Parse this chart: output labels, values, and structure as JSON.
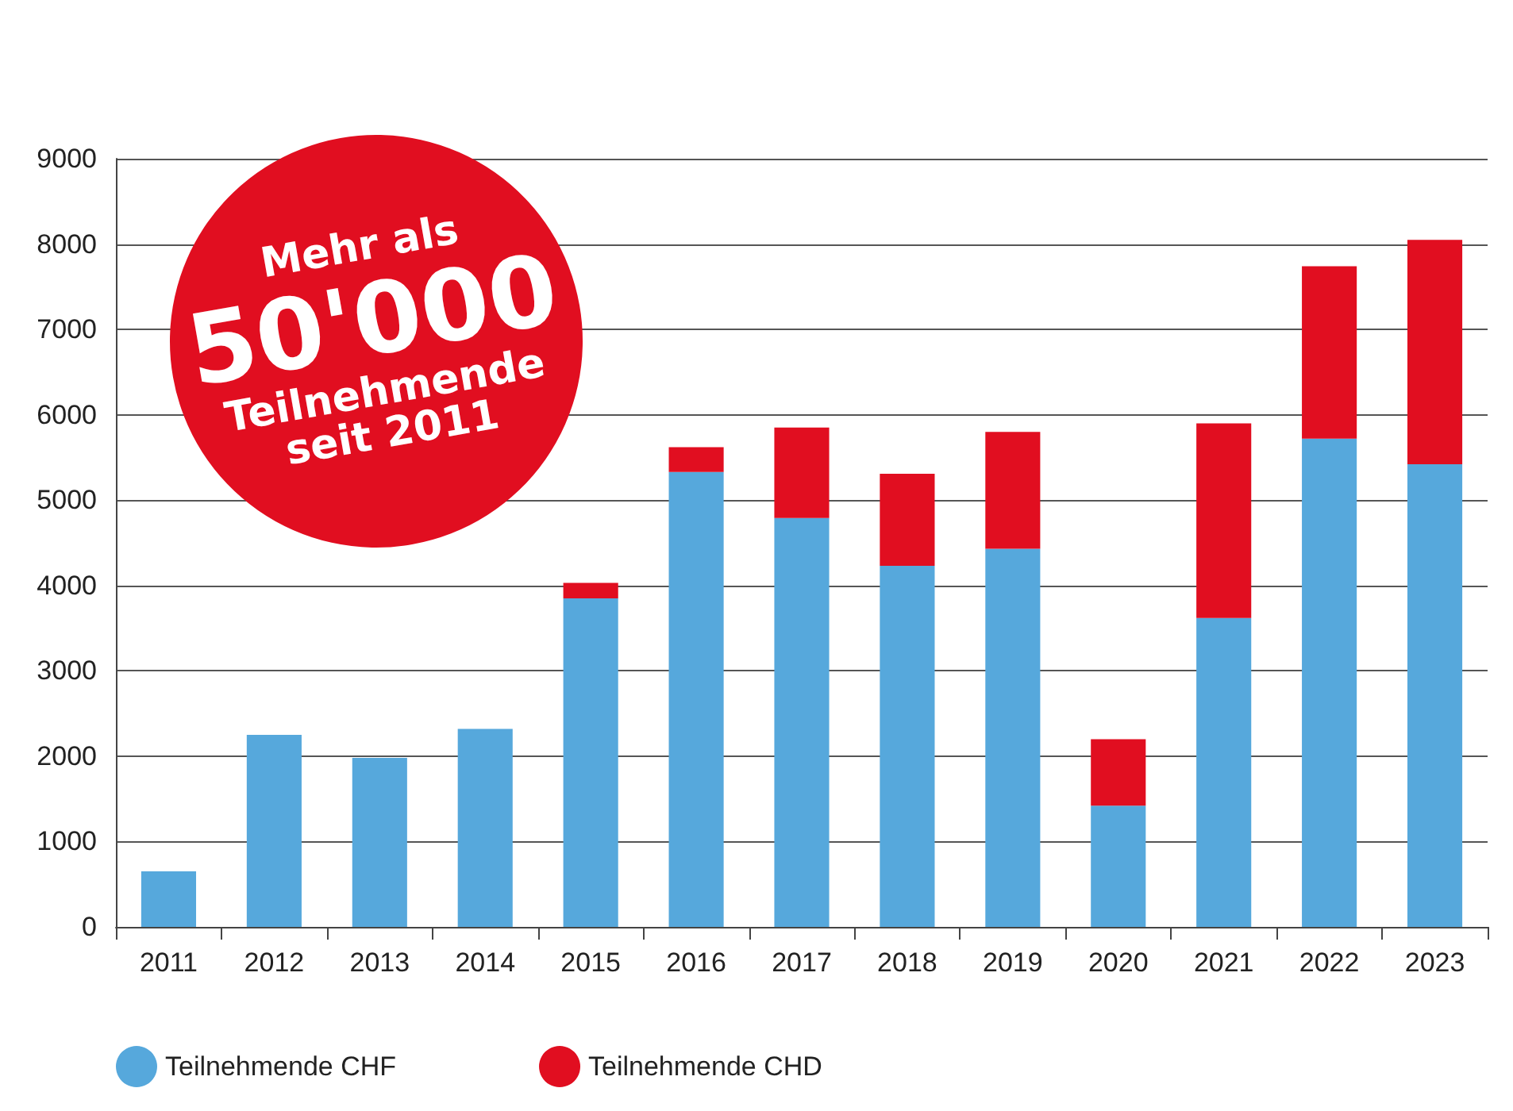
{
  "chart_data": {
    "type": "bar",
    "stacked": true,
    "categories": [
      "2011",
      "2012",
      "2013",
      "2014",
      "2015",
      "2016",
      "2017",
      "2018",
      "2019",
      "2020",
      "2021",
      "2022",
      "2023"
    ],
    "series": [
      {
        "name": "Teilnehmende CHF",
        "color": "#56a8dc",
        "values": [
          650,
          2250,
          1980,
          2320,
          3850,
          5330,
          4790,
          4230,
          4430,
          1420,
          3620,
          5720,
          5420
        ]
      },
      {
        "name": "Teilnehmende CHD",
        "color": "#e10e20",
        "values": [
          null,
          null,
          null,
          null,
          180,
          290,
          1060,
          1080,
          1370,
          780,
          2280,
          2020,
          2630
        ]
      }
    ],
    "ylim": [
      0,
      9000
    ],
    "yticks": [
      0,
      1000,
      2000,
      3000,
      4000,
      5000,
      6000,
      7000,
      8000,
      9000
    ],
    "grid": "y",
    "legend": "bottom",
    "annotations": [
      "Mehr als",
      "50'000",
      "Teilnehmende",
      "seit 2011"
    ]
  }
}
